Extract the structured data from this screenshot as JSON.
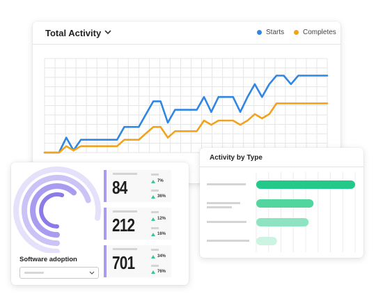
{
  "main_card": {
    "title": "Total Activity",
    "chevron_icon": "chevron-down-icon",
    "legend": [
      {
        "label": "Starts",
        "color": "#2f86e3"
      },
      {
        "label": "Completes",
        "color": "#f2a21b"
      }
    ]
  },
  "chart_data": [
    {
      "type": "line",
      "title": "Total Activity",
      "x": [
        1,
        2,
        3,
        4,
        5,
        6,
        7,
        8,
        9,
        10,
        11,
        12,
        13,
        14,
        15,
        16,
        17,
        18,
        19,
        20,
        21,
        22,
        23,
        24,
        25,
        26,
        27,
        28,
        29,
        30,
        31,
        32,
        33,
        34,
        35,
        36,
        37,
        38,
        39,
        40
      ],
      "series": [
        {
          "name": "Starts",
          "color": "#2f86e3",
          "values": [
            0,
            0,
            0,
            0.7,
            0.1,
            0.6,
            0.6,
            0.6,
            0.6,
            0.6,
            0.6,
            1.2,
            1.2,
            1.2,
            1.8,
            2.4,
            2.4,
            1.4,
            2.0,
            2.0,
            2.0,
            2.0,
            2.6,
            1.9,
            2.6,
            2.6,
            2.6,
            1.9,
            2.6,
            3.2,
            2.6,
            3.2,
            3.6,
            3.6,
            3.2,
            3.6,
            3.6,
            3.6,
            3.6,
            3.6
          ]
        },
        {
          "name": "Completes",
          "color": "#f2a21b",
          "values": [
            0,
            0,
            0,
            0.3,
            0.1,
            0.3,
            0.3,
            0.3,
            0.3,
            0.3,
            0.3,
            0.6,
            0.6,
            0.6,
            0.9,
            1.2,
            1.2,
            0.7,
            1.0,
            1.0,
            1.0,
            1.0,
            1.5,
            1.3,
            1.5,
            1.5,
            1.5,
            1.3,
            1.5,
            1.8,
            1.6,
            1.8,
            2.3,
            2.3,
            2.3,
            2.3,
            2.3,
            2.3,
            2.3,
            2.3
          ]
        }
      ],
      "grid": true,
      "legend_position": "top-right"
    },
    {
      "type": "bar",
      "orientation": "horizontal",
      "title": "Activity by Type",
      "values": [
        100,
        58,
        53,
        21
      ],
      "colors": [
        "#22c98b",
        "#52d59f",
        "#8ee4c2",
        "#cdf3e3"
      ],
      "grid": true
    }
  ],
  "type_card": {
    "title": "Activity by Type"
  },
  "adoption": {
    "title": "Software adoption",
    "gauge_levels": [
      0.78,
      0.7,
      0.62,
      0.55
    ],
    "gauge_colors": [
      "#e5e1fb",
      "#cbc3f6",
      "#a99cf0",
      "#8a7be8"
    ],
    "select_chevron_icon": "chevron-down-icon",
    "stats": [
      {
        "value": "84",
        "delta1": "7%",
        "delta2": "36%"
      },
      {
        "value": "212",
        "delta1": "12%",
        "delta2": "16%"
      },
      {
        "value": "701",
        "delta1": "34%",
        "delta2": "76%"
      }
    ],
    "accent_color": "#a99cf0",
    "delta_icon": "triangle-up-icon"
  }
}
